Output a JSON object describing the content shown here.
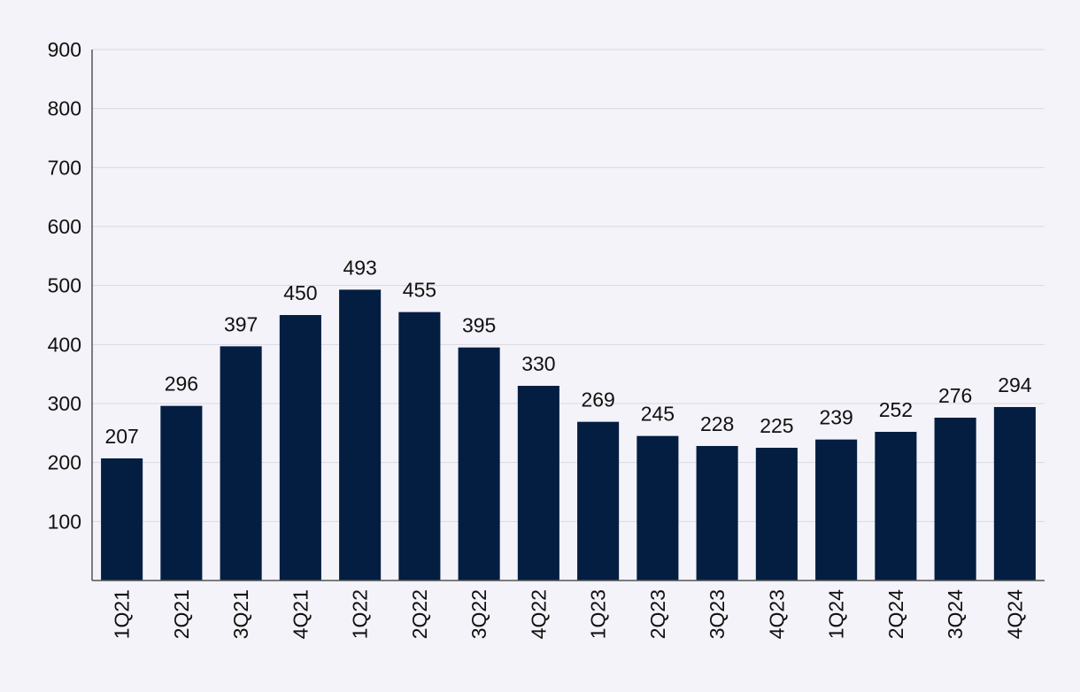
{
  "chart_data": {
    "type": "bar",
    "categories": [
      "1Q21",
      "2Q21",
      "3Q21",
      "4Q21",
      "1Q22",
      "2Q22",
      "3Q22",
      "4Q22",
      "1Q23",
      "2Q23",
      "3Q23",
      "4Q23",
      "1Q24",
      "2Q24",
      "3Q24",
      "4Q24"
    ],
    "values": [
      207,
      296,
      397,
      450,
      493,
      455,
      395,
      330,
      269,
      245,
      228,
      225,
      239,
      252,
      276,
      294
    ],
    "yticks": [
      100,
      200,
      300,
      400,
      500,
      600,
      700,
      800,
      900
    ],
    "ylim": [
      0,
      900
    ],
    "grid": true,
    "bar_color": "#041e42",
    "title": "",
    "xlabel": "",
    "ylabel": ""
  }
}
